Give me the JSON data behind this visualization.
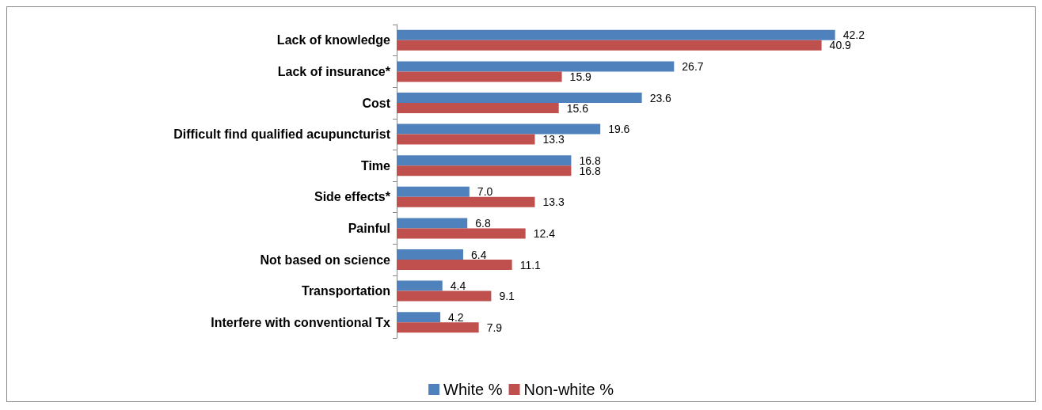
{
  "chart_data": {
    "type": "bar",
    "orientation": "horizontal",
    "categories": [
      "Lack of knowledge",
      "Lack of insurance*",
      "Cost",
      "Difficult find qualified acupuncturist",
      "Time",
      "Side effects*",
      "Painful",
      "Not based on science",
      "Transportation",
      "Interfere with conventional Tx"
    ],
    "series": [
      {
        "name": "White %",
        "color": "#4f81bd",
        "values": [
          42.2,
          26.7,
          23.6,
          19.6,
          16.8,
          7.0,
          6.8,
          6.4,
          4.4,
          4.2
        ],
        "value_labels": [
          "42.2",
          "26.7",
          "23.6",
          "19.6",
          "16.8",
          "7.0",
          "6.8",
          "6.4",
          "4.4",
          "4.2"
        ]
      },
      {
        "name": "Non-white %",
        "color": "#c0504d",
        "values": [
          40.9,
          15.9,
          15.6,
          13.3,
          16.8,
          13.3,
          12.4,
          11.1,
          9.1,
          7.9
        ],
        "value_labels": [
          "40.9",
          "15.9",
          "15.6",
          "13.3",
          "16.8",
          "13.3",
          "12.4",
          "11.1",
          "9.1",
          "7.9"
        ]
      }
    ],
    "legend": "bottom",
    "grid": false,
    "tick_labels": "y"
  }
}
